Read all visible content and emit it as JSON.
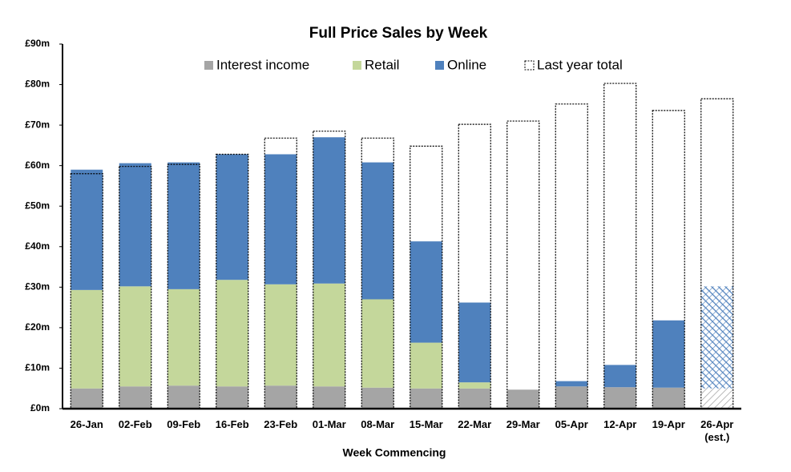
{
  "chart_data": {
    "type": "stacked_bar",
    "title": "Full Price Sales by Week",
    "x_label": "Week Commencing",
    "categories": [
      "26-Jan",
      "02-Feb",
      "09-Feb",
      "16-Feb",
      "23-Feb",
      "01-Mar",
      "08-Mar",
      "15-Mar",
      "22-Mar",
      "29-Mar",
      "05-Apr",
      "12-Apr",
      "19-Apr",
      "26-Apr (est.)"
    ],
    "series": [
      {
        "name": "Interest income",
        "color": "#a5a5a5",
        "values": [
          5,
          5.5,
          5.7,
          5.5,
          5.7,
          5.5,
          5.2,
          5,
          5,
          4.7,
          5.5,
          5.3,
          5.2,
          5
        ]
      },
      {
        "name": "Retail",
        "color": "#c4d79b",
        "values": [
          24.3,
          24.7,
          23.8,
          26.3,
          25,
          25.4,
          21.8,
          11.3,
          1.5,
          0,
          0,
          0,
          0,
          0
        ]
      },
      {
        "name": "Online",
        "color": "#4f81bd",
        "values": [
          29.7,
          30.4,
          31.3,
          31,
          32.1,
          36.1,
          33.8,
          25,
          19.7,
          0,
          1.3,
          5.5,
          16.6,
          25.2
        ]
      }
    ],
    "outline_series": {
      "name": "Last year total",
      "values": [
        58,
        59.8,
        60.3,
        62.8,
        66.8,
        68.5,
        66.8,
        64.8,
        70.2,
        71,
        75.2,
        80.3,
        73.6,
        76.5
      ]
    },
    "hatched_categories": [
      13
    ],
    "ylim": [
      0,
      90
    ],
    "yticks": [
      {
        "value": 0,
        "label": "£0m"
      },
      {
        "value": 10,
        "label": "£10m"
      },
      {
        "value": 20,
        "label": "£20m"
      },
      {
        "value": 30,
        "label": "£30m"
      },
      {
        "value": 40,
        "label": "£40m"
      },
      {
        "value": 50,
        "label": "£50m"
      },
      {
        "value": 60,
        "label": "£60m"
      },
      {
        "value": 70,
        "label": "£70m"
      },
      {
        "value": 80,
        "label": "£80m"
      },
      {
        "value": 90,
        "label": "£90m"
      }
    ],
    "grid": false,
    "legend": "top"
  }
}
